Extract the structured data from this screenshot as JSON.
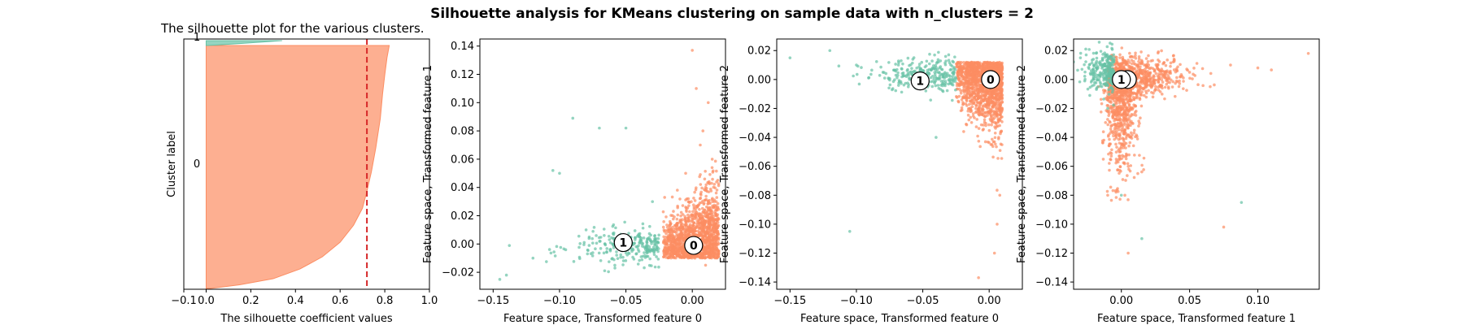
{
  "figure": {
    "suptitle": "Silhouette analysis for KMeans clustering on sample data with n_clusters = 2"
  },
  "colors": {
    "cluster_0": "#fc8d62",
    "cluster_1": "#66c2a5",
    "avg_line": "#d62728"
  },
  "chart_data": [
    {
      "type": "area",
      "title": "The silhouette plot for the various clusters.",
      "xlabel": "The silhouette coefficient values",
      "ylabel": "Cluster label",
      "xlim": [
        -0.1,
        1.0
      ],
      "xticks": [
        "−0.1",
        "0.0",
        "0.2",
        "0.4",
        "0.6",
        "0.8",
        "1.0"
      ],
      "cluster_labels": [
        "0",
        "1"
      ],
      "average_silhouette": 0.72,
      "clusters": [
        {
          "label": "0",
          "profile": [
            [
              0.82,
              0
            ],
            [
              0.81,
              0.05
            ],
            [
              0.8,
              0.12
            ],
            [
              0.79,
              0.2
            ],
            [
              0.78,
              0.3
            ],
            [
              0.76,
              0.42
            ],
            [
              0.74,
              0.52
            ],
            [
              0.72,
              0.6
            ],
            [
              0.7,
              0.67
            ],
            [
              0.66,
              0.74
            ],
            [
              0.6,
              0.81
            ],
            [
              0.52,
              0.87
            ],
            [
              0.42,
              0.92
            ],
            [
              0.3,
              0.96
            ],
            [
              0.15,
              0.985
            ],
            [
              0.02,
              1
            ]
          ]
        },
        {
          "label": "1",
          "profile": [
            [
              0.34,
              0
            ],
            [
              0.25,
              0.3
            ],
            [
              0.15,
              0.6
            ],
            [
              0.05,
              0.9
            ],
            [
              0.0,
              1
            ]
          ]
        }
      ]
    },
    {
      "type": "scatter",
      "xlabel": "Feature space, Transformed feature 0",
      "ylabel": "Feature space, Transformed feature 1",
      "xlim": [
        -0.16,
        0.025
      ],
      "ylim": [
        -0.032,
        0.145
      ],
      "xticks": [
        "−0.15",
        "−0.10",
        "−0.05",
        "0.00"
      ],
      "yticks": [
        "−0.02",
        "0.00",
        "0.02",
        "0.04",
        "0.06",
        "0.08",
        "0.10",
        "0.12",
        "0.14"
      ],
      "centers": [
        {
          "label": "0",
          "x": 0.001,
          "y": -0.001
        },
        {
          "label": "1",
          "x": -0.052,
          "y": 0.001
        }
      ],
      "series": [
        {
          "name": "0",
          "x": [
            0.0,
            0.005,
            0.01,
            -0.01,
            0.015,
            0.008,
            -0.02,
            0.003,
            0.012,
            0.0,
            0.01,
            0.018,
            -0.005,
            0.006,
            0.002
          ],
          "y": [
            0.0,
            0.02,
            0.04,
            0.01,
            0.06,
            0.08,
            -0.005,
            0.11,
            0.1,
            0.137,
            -0.015,
            0.03,
            0.05,
            0.07,
            -0.01
          ]
        },
        {
          "name": "1",
          "x": [
            -0.06,
            -0.08,
            -0.1,
            -0.12,
            -0.14,
            -0.145,
            -0.03,
            -0.05,
            -0.07,
            -0.09,
            -0.105
          ],
          "y": [
            0.0,
            0.01,
            0.05,
            -0.01,
            -0.022,
            -0.025,
            0.03,
            0.082,
            0.082,
            0.089,
            0.052
          ]
        }
      ]
    },
    {
      "type": "scatter",
      "xlabel": "Feature space, Transformed feature 0",
      "ylabel": "Feature space, Transformed feature 2",
      "xlim": [
        -0.16,
        0.025
      ],
      "ylim": [
        -0.145,
        0.028
      ],
      "xticks": [
        "−0.15",
        "−0.10",
        "−0.05",
        "0.00"
      ],
      "yticks": [
        "−0.14",
        "−0.12",
        "−0.10",
        "−0.08",
        "−0.06",
        "−0.04",
        "−0.02",
        "0.00",
        "0.02"
      ],
      "centers": [
        {
          "label": "0",
          "x": 0.001,
          "y": 0.0
        },
        {
          "label": "1",
          "x": -0.052,
          "y": -0.001
        }
      ],
      "series": [
        {
          "name": "0",
          "x": [
            0.0,
            0.005,
            -0.01,
            0.008,
            0.004,
            0.006,
            -0.008
          ],
          "y": [
            0.0,
            -0.03,
            -0.02,
            -0.08,
            -0.12,
            -0.1,
            -0.137
          ]
        },
        {
          "name": "1",
          "x": [
            -0.15,
            -0.12,
            -0.1,
            -0.08,
            -0.06,
            -0.04,
            -0.105
          ],
          "y": [
            0.015,
            0.02,
            0.01,
            0.005,
            0.0,
            -0.04,
            -0.105
          ]
        }
      ]
    },
    {
      "type": "scatter",
      "xlabel": "Feature space, Transformed feature 1",
      "ylabel": "Feature space, Transformed feature 2",
      "xlim": [
        -0.035,
        0.145
      ],
      "ylim": [
        -0.145,
        0.028
      ],
      "xticks": [
        "0.00",
        "0.05",
        "0.10"
      ],
      "yticks": [
        "−0.14",
        "−0.12",
        "−0.10",
        "−0.08",
        "−0.06",
        "−0.04",
        "−0.02",
        "0.00",
        "0.02"
      ],
      "centers": [
        {
          "label": "0",
          "x": 0.002,
          "y": 0.0
        },
        {
          "label": "1",
          "x": 0.0,
          "y": 0.0
        }
      ],
      "series": [
        {
          "name": "0",
          "x": [
            0.0,
            0.02,
            0.05,
            0.08,
            0.1,
            0.137,
            -0.01,
            0.005,
            0.075
          ],
          "y": [
            0.0,
            0.01,
            0.005,
            0.01,
            0.008,
            0.018,
            -0.08,
            -0.12,
            -0.102
          ]
        },
        {
          "name": "1",
          "x": [
            -0.03,
            -0.02,
            -0.01,
            0.0,
            0.015,
            0.088
          ],
          "y": [
            0.015,
            0.01,
            -0.02,
            -0.08,
            -0.11,
            -0.085
          ]
        }
      ]
    }
  ]
}
